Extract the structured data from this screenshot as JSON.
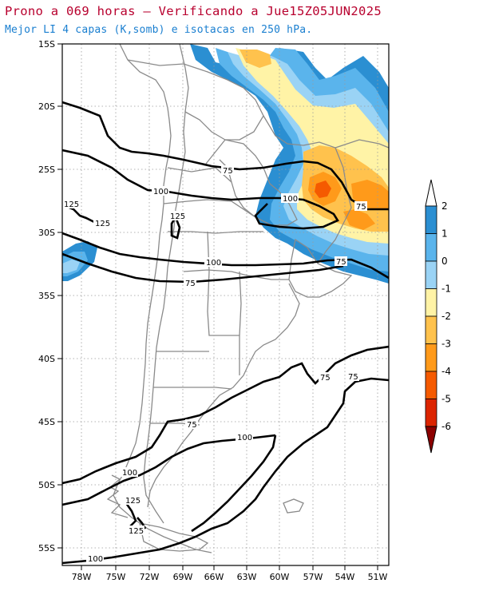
{
  "title": "Prono a 069 horas — Verificando a Jue15Z05JUN2025",
  "subtitle": "Mejor LI 4 capas (K,somb) e isotacas en 250 hPa.",
  "lat_ticks": [
    "15S",
    "20S",
    "25S",
    "30S",
    "35S",
    "40S",
    "45S",
    "50S",
    "55S"
  ],
  "lon_ticks": [
    "78W",
    "75W",
    "72W",
    "69W",
    "66W",
    "63W",
    "60W",
    "57W",
    "54W",
    "51W"
  ],
  "contour_labels": {
    "c75_a": "75",
    "c100_a": "100",
    "c100_b": "100",
    "c75_b": "75",
    "c125_a": "125",
    "c125_b": "125",
    "c125_c": "125",
    "c100_c": "100",
    "c75_c": "75",
    "c75_d": "75",
    "c75_e": "75",
    "c75_f": "75",
    "c100_d": "100",
    "c100_e": "100",
    "c125_d": "125",
    "c125_e": "125",
    "c100_f": "100"
  },
  "colorbar": {
    "labels": [
      "2",
      "1",
      "0",
      "-1",
      "-2",
      "-3",
      "-4",
      "-5",
      "-6"
    ],
    "colors": [
      "#2b8fd2",
      "#5ab4ec",
      "#9ad3f5",
      "#fff3a6",
      "#ffc24d",
      "#ff9a1a",
      "#f55a00",
      "#dc2400",
      "#b40000",
      "#8c0000"
    ]
  },
  "colors": {
    "li_pos2": "#2b8fd2",
    "li_pos1": "#5ab4ec",
    "li_0": "#9ad3f5",
    "li_neg1": "#fff3a6",
    "li_neg2": "#ffc24d",
    "li_neg3": "#ff9a1a",
    "li_neg4": "#f55a00",
    "borders": "#8a8a8a",
    "isotach": "#000000"
  }
}
